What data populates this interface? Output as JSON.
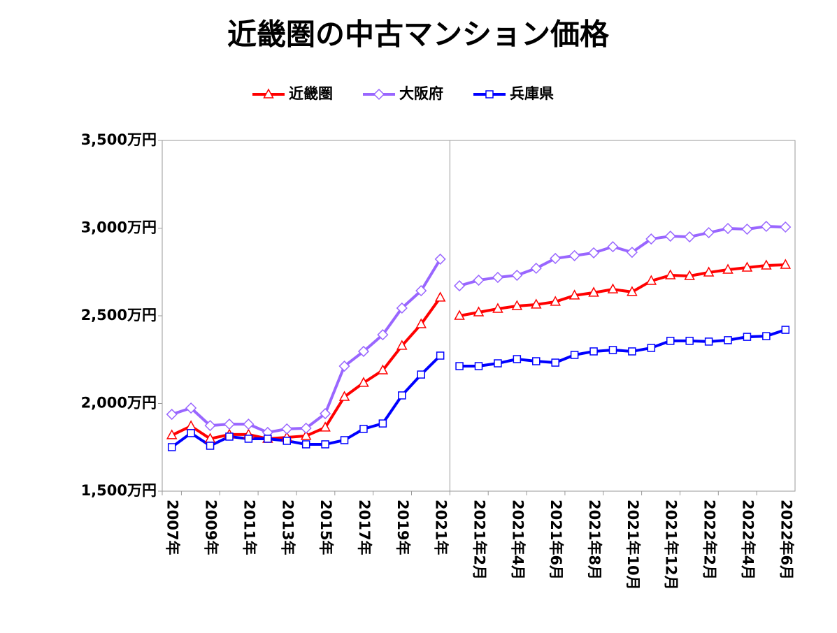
{
  "chart_data": {
    "type": "line",
    "title": "近畿圏の中古マンション価格",
    "x_groups": [
      [
        "2007年",
        null,
        "2009年",
        null,
        "2011年",
        null,
        "2013年",
        null,
        "2015年",
        null,
        "2017年",
        null,
        "2019年",
        null,
        "2021年"
      ],
      [
        null,
        "2021年2月",
        null,
        "2021年4月",
        null,
        "2021年6月",
        null,
        "2021年8月",
        null,
        "2021年10月",
        null,
        "2021年12月",
        null,
        "2022年2月",
        null,
        "2022年4月",
        null,
        "2022年6月"
      ]
    ],
    "series": [
      {
        "name": "近畿圏",
        "color": "#ff0000",
        "marker": "triangle",
        "values": [
          [
            1819,
            1871,
            1799,
            1823,
            1823,
            1799,
            1807,
            1815,
            1863,
            2038,
            2118,
            2189,
            2329,
            2452,
            2604
          ],
          [
            2500,
            2520,
            2540,
            2556,
            2564,
            2580,
            2616,
            2632,
            2651,
            2636,
            2699,
            2731,
            2727,
            2747,
            2763,
            2775,
            2787,
            2791
          ]
        ]
      },
      {
        "name": "大阪府",
        "color": "#9966ff",
        "marker": "diamond",
        "values": [
          [
            1938,
            1974,
            1874,
            1882,
            1882,
            1835,
            1855,
            1859,
            1942,
            2213,
            2297,
            2392,
            2544,
            2643,
            2823
          ],
          [
            2671,
            2703,
            2719,
            2731,
            2771,
            2827,
            2843,
            2859,
            2894,
            2862,
            2938,
            2954,
            2950,
            2974,
            2998,
            2994,
            3010,
            3006
          ]
        ]
      },
      {
        "name": "兵庫県",
        "color": "#0000ff",
        "marker": "square",
        "values": [
          [
            1751,
            1831,
            1759,
            1811,
            1799,
            1799,
            1787,
            1767,
            1767,
            1791,
            1855,
            1886,
            2046,
            2165,
            2273
          ],
          [
            2213,
            2213,
            2229,
            2253,
            2241,
            2233,
            2277,
            2297,
            2305,
            2297,
            2317,
            2357,
            2357,
            2353,
            2361,
            2380,
            2384,
            2420
          ]
        ]
      }
    ],
    "ylim": [
      1500,
      3500
    ],
    "yticks": [
      {
        "value": 1500,
        "label": "1,500万円"
      },
      {
        "value": 2000,
        "label": "2,000万円"
      },
      {
        "value": 2500,
        "label": "2,500万円"
      },
      {
        "value": 3000,
        "label": "3,000万円"
      },
      {
        "value": 3500,
        "label": "3,500万円"
      }
    ],
    "legend": "top"
  }
}
